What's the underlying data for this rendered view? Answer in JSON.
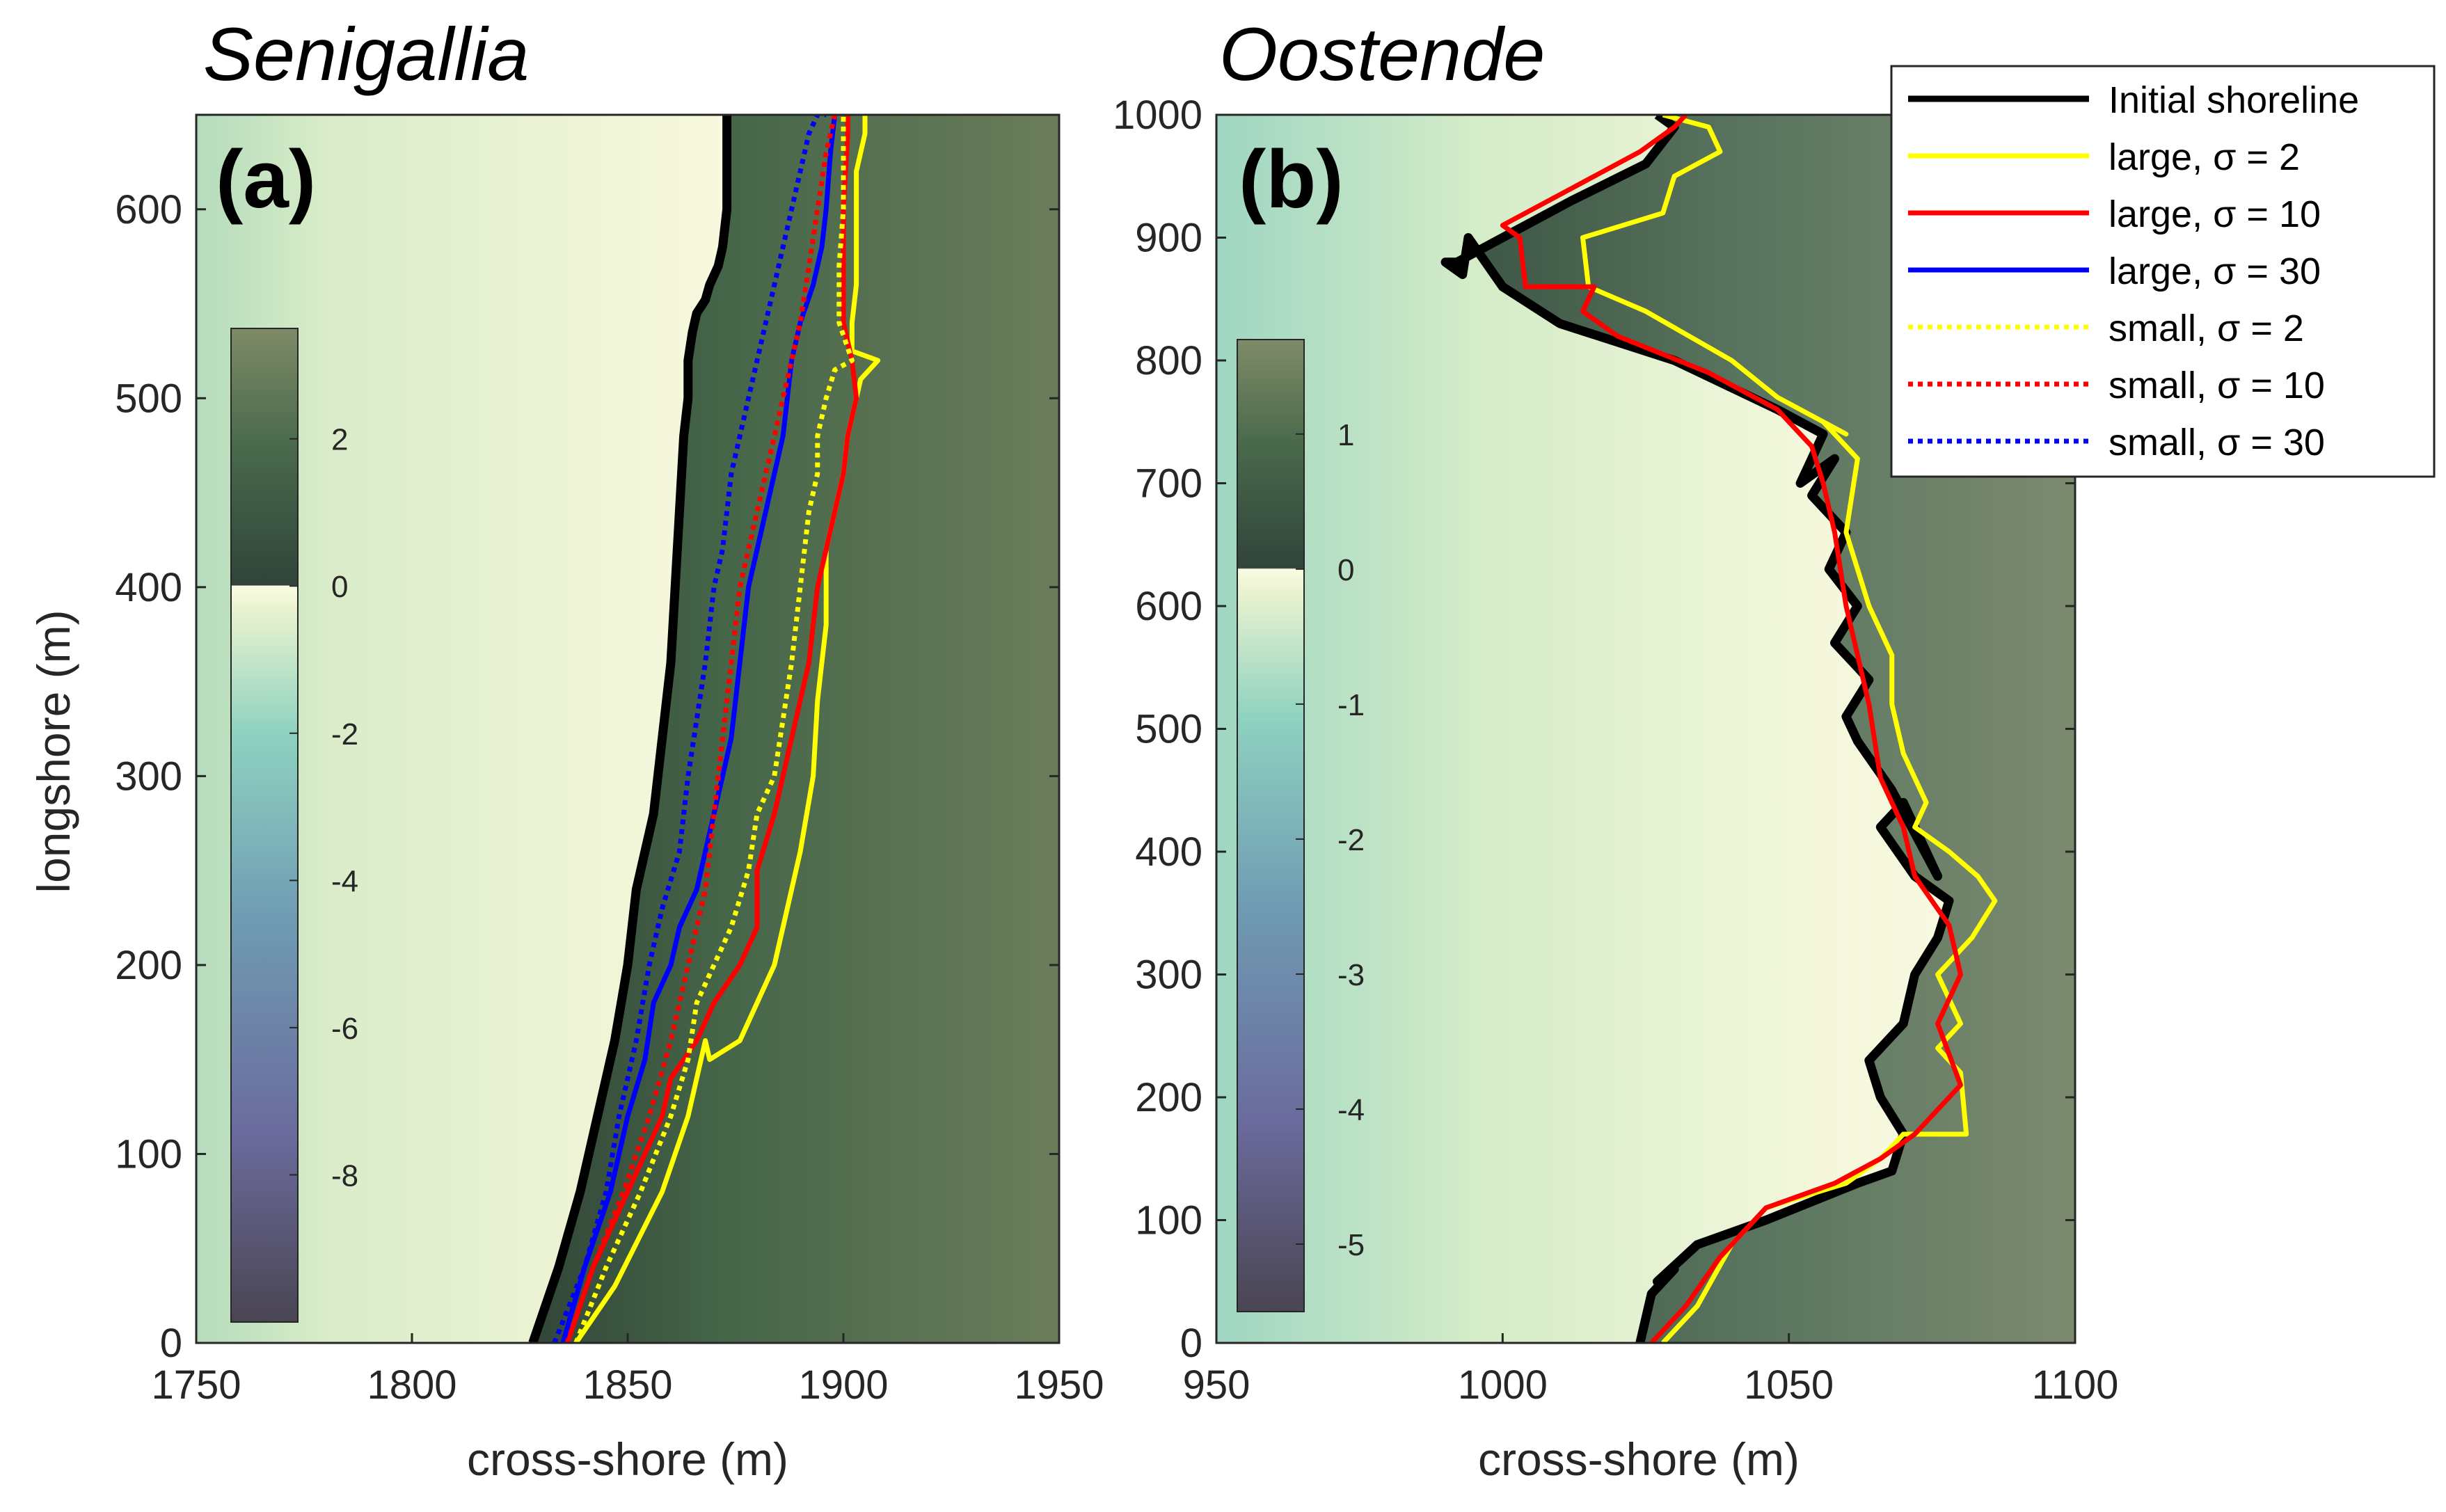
{
  "chart_data": [
    {
      "type": "line",
      "title": "Senigallia",
      "panel_label": "(a)",
      "xlabel": "cross-shore (m)",
      "ylabel": "longshore (m)",
      "xlim": [
        1750,
        1950
      ],
      "ylim": [
        0,
        650
      ],
      "xticks": [
        1750,
        1800,
        1850,
        1900,
        1950
      ],
      "yticks": [
        0,
        100,
        200,
        300,
        400,
        500,
        600
      ],
      "colorbar": {
        "range": [
          -10,
          3.5
        ],
        "ticks": [
          2,
          0,
          -2,
          -4,
          -6,
          -8
        ],
        "colors_low_to_high": [
          "#4a4552",
          "#6a6a9c",
          "#6f9cb3",
          "#8fd2c0",
          "#eaf3cf",
          "#fbfbe4",
          "#31443a",
          "#4a6a4c",
          "#7f8b68"
        ]
      },
      "series": [
        {
          "name": "Initial shoreline",
          "color": "#000000",
          "dash": "solid",
          "x": [
            1828,
            1834,
            1839,
            1843,
            1847,
            1850,
            1852,
            1856,
            1858,
            1860,
            1861,
            1862,
            1863,
            1864,
            1864,
            1865,
            1866,
            1868,
            1869,
            1871,
            1872,
            1873,
            1873,
            1873,
            1873,
            1873
          ],
          "y": [
            0,
            40,
            80,
            120,
            160,
            200,
            240,
            280,
            320,
            360,
            400,
            440,
            480,
            500,
            520,
            535,
            545,
            552,
            560,
            570,
            580,
            600,
            620,
            640,
            650,
            650
          ]
        },
        {
          "name": "large, σ = 2",
          "color": "#ffff00",
          "dash": "solid",
          "x": [
            1838,
            1847,
            1858,
            1864,
            1868,
            1869,
            1876,
            1880,
            1884,
            1888,
            1890,
            1893,
            1894,
            1896,
            1896,
            1898,
            1900,
            1901,
            1903,
            1904,
            1906,
            1908,
            1902,
            1902,
            1903,
            1903,
            1903,
            1905,
            1905,
            1905
          ],
          "y": [
            0,
            30,
            80,
            120,
            160,
            150,
            160,
            180,
            200,
            240,
            260,
            300,
            340,
            380,
            420,
            440,
            460,
            480,
            500,
            510,
            515,
            520,
            525,
            540,
            560,
            600,
            620,
            640,
            650,
            650
          ]
        },
        {
          "name": "large, σ = 10",
          "color": "#ff0000",
          "dash": "solid",
          "x": [
            1836,
            1842,
            1850,
            1858,
            1860,
            1866,
            1870,
            1876,
            1880,
            1880,
            1884,
            1886,
            1888,
            1890,
            1892,
            1894,
            1896,
            1898,
            1900,
            1901,
            1903,
            1902,
            1900,
            1900,
            1900,
            1901,
            1901
          ],
          "y": [
            0,
            40,
            80,
            120,
            140,
            160,
            180,
            200,
            220,
            250,
            280,
            300,
            320,
            340,
            360,
            400,
            420,
            440,
            460,
            480,
            500,
            520,
            540,
            560,
            600,
            640,
            650
          ]
        },
        {
          "name": "large, σ = 30",
          "color": "#0000ff",
          "dash": "solid",
          "x": [
            1835,
            1840,
            1846,
            1850,
            1854,
            1856,
            1860,
            1862,
            1866,
            1868,
            1870,
            1872,
            1874,
            1876,
            1878,
            1880,
            1882,
            1884,
            1886,
            1887,
            1888,
            1890,
            1893,
            1895,
            1896,
            1897,
            1898
          ],
          "y": [
            0,
            40,
            80,
            120,
            150,
            180,
            200,
            220,
            240,
            260,
            280,
            300,
            320,
            360,
            400,
            420,
            440,
            460,
            480,
            500,
            520,
            540,
            560,
            580,
            600,
            630,
            650
          ]
        },
        {
          "name": "small, σ = 2",
          "color": "#ffff00",
          "dash": "dotted",
          "x": [
            1838,
            1845,
            1853,
            1860,
            1864,
            1866,
            1870,
            1874,
            1878,
            1880,
            1884,
            1886,
            1888,
            1890,
            1892,
            1894,
            1894,
            1896,
            1898,
            1902,
            1899,
            1899,
            1900,
            1900
          ],
          "y": [
            0,
            40,
            80,
            120,
            150,
            180,
            200,
            220,
            250,
            280,
            300,
            330,
            360,
            400,
            440,
            460,
            480,
            500,
            515,
            520,
            540,
            570,
            600,
            650
          ]
        },
        {
          "name": "small, σ = 10",
          "color": "#ff0000",
          "dash": "dotted",
          "x": [
            1836,
            1842,
            1849,
            1855,
            1860,
            1864,
            1868,
            1870,
            1872,
            1874,
            1876,
            1878,
            1880,
            1882,
            1884,
            1886,
            1888,
            1890,
            1892,
            1894,
            1896,
            1898
          ],
          "y": [
            0,
            40,
            80,
            120,
            160,
            200,
            240,
            280,
            320,
            360,
            400,
            420,
            440,
            460,
            480,
            500,
            520,
            540,
            570,
            600,
            630,
            650
          ]
        },
        {
          "name": "small, σ = 30",
          "color": "#0000ff",
          "dash": "dotted",
          "x": [
            1833,
            1840,
            1845,
            1848,
            1852,
            1855,
            1858,
            1862,
            1864,
            1866,
            1868,
            1870,
            1872,
            1873,
            1874,
            1876,
            1878,
            1880,
            1882,
            1884,
            1886,
            1888,
            1890,
            1892,
            1894,
            1896
          ],
          "y": [
            0,
            40,
            80,
            120,
            160,
            200,
            230,
            260,
            300,
            330,
            360,
            400,
            420,
            440,
            460,
            480,
            500,
            520,
            540,
            560,
            580,
            600,
            620,
            640,
            650,
            650
          ]
        }
      ]
    },
    {
      "type": "line",
      "title": "Oostende",
      "panel_label": "(b)",
      "xlabel": "cross-shore (m)",
      "ylabel": "",
      "xlim": [
        950,
        1100
      ],
      "ylim": [
        0,
        1000
      ],
      "xticks": [
        950,
        1000,
        1050,
        1100
      ],
      "yticks": [
        0,
        100,
        200,
        300,
        400,
        500,
        600,
        700,
        800,
        900,
        1000
      ],
      "colorbar": {
        "range": [
          -5.5,
          1.7
        ],
        "ticks": [
          1,
          0,
          -1,
          -2,
          -3,
          -4,
          -5
        ],
        "colors_low_to_high": [
          "#4a4552",
          "#6a6a9c",
          "#6f9cb3",
          "#8fd2c0",
          "#eaf3cf",
          "#fbfbe4",
          "#31443a",
          "#4a6a4c",
          "#7f8b68"
        ]
      },
      "legend": {
        "location": "top-right",
        "entries": [
          "Initial shoreline",
          "large, σ = 2",
          "large, σ = 10",
          "large, σ = 30",
          "small, σ = 2",
          "small, σ = 10",
          "small, σ = 30"
        ]
      },
      "series": [
        {
          "name": "Initial shoreline",
          "color": "#000000",
          "dash": "solid",
          "x": [
            1024,
            1026,
            1030,
            1027,
            1034,
            1046,
            1062,
            1068,
            1070,
            1066,
            1064,
            1070,
            1072,
            1076,
            1078,
            1072,
            1066,
            1070,
            1076,
            1068,
            1062,
            1060,
            1064,
            1058,
            1062,
            1057,
            1060,
            1054,
            1058,
            1052,
            1056,
            1048,
            1030,
            1010,
            1000,
            997,
            994,
            993,
            990,
            992,
            1000,
            1012,
            1025,
            1030,
            1027
          ],
          "y": [
            0,
            40,
            60,
            50,
            80,
            100,
            130,
            140,
            170,
            200,
            230,
            260,
            300,
            330,
            360,
            380,
            420,
            440,
            380,
            450,
            490,
            510,
            540,
            570,
            600,
            630,
            660,
            690,
            720,
            700,
            740,
            760,
            800,
            830,
            860,
            880,
            900,
            870,
            880,
            880,
            900,
            930,
            960,
            990,
            1000
          ]
        },
        {
          "name": "large, σ = 2",
          "color": "#ffff00",
          "dash": "solid",
          "x": [
            1028,
            1034,
            1040,
            1046,
            1060,
            1066,
            1070,
            1081,
            1080,
            1076,
            1080,
            1076,
            1082,
            1086,
            1083,
            1078,
            1072,
            1074,
            1070,
            1068,
            1068,
            1064,
            1062,
            1060,
            1062,
            1056,
            1060,
            1048,
            1040,
            1025,
            1015,
            1014,
            1028,
            1030,
            1038,
            1036,
            1028
          ],
          "y": [
            0,
            30,
            80,
            110,
            130,
            150,
            170,
            170,
            220,
            240,
            260,
            300,
            330,
            360,
            380,
            400,
            420,
            440,
            480,
            520,
            560,
            600,
            630,
            660,
            720,
            750,
            740,
            770,
            800,
            840,
            860,
            900,
            920,
            950,
            970,
            990,
            1000
          ]
        },
        {
          "name": "large, σ = 10",
          "color": "#ff0000",
          "dash": "solid",
          "x": [
            1026,
            1032,
            1038,
            1046,
            1058,
            1066,
            1072,
            1080,
            1076,
            1080,
            1078,
            1072,
            1070,
            1066,
            1064,
            1062,
            1060,
            1058,
            1056,
            1054,
            1048,
            1036,
            1020,
            1014,
            1016,
            1004,
            1003,
            1000,
            1012,
            1024,
            1030,
            1032
          ],
          "y": [
            0,
            30,
            70,
            110,
            130,
            150,
            170,
            210,
            260,
            300,
            340,
            380,
            420,
            460,
            520,
            560,
            600,
            660,
            700,
            730,
            760,
            790,
            820,
            840,
            860,
            860,
            900,
            910,
            940,
            970,
            990,
            1000
          ]
        }
      ]
    }
  ],
  "legend_entries": [
    {
      "label": "Initial shoreline",
      "color": "#000000",
      "dash": "solid"
    },
    {
      "label": "large, σ = 2",
      "color": "#ffff00",
      "dash": "solid"
    },
    {
      "label": "large, σ = 10",
      "color": "#ff0000",
      "dash": "solid"
    },
    {
      "label": "large, σ = 30",
      "color": "#0000ff",
      "dash": "solid"
    },
    {
      "label": "small, σ = 2",
      "color": "#ffff00",
      "dash": "dotted"
    },
    {
      "label": "small, σ = 10",
      "color": "#ff0000",
      "dash": "dotted"
    },
    {
      "label": "small, σ = 30",
      "color": "#0000ff",
      "dash": "dotted"
    }
  ]
}
